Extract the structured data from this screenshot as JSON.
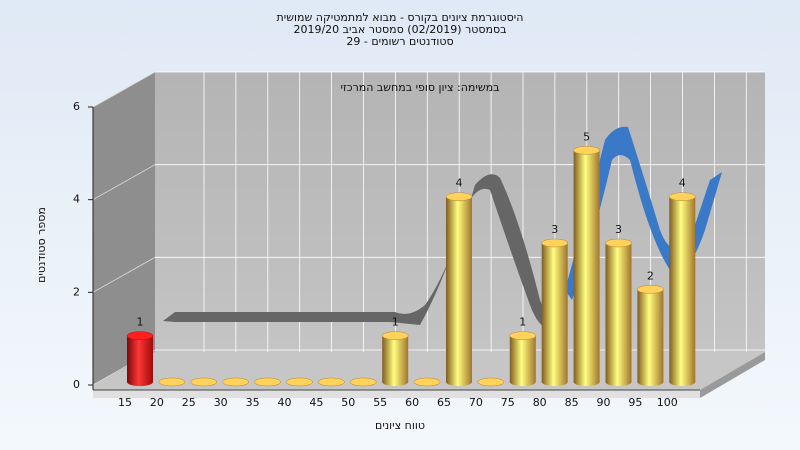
{
  "chart_data": {
    "type": "bar",
    "title_lines": [
      "היסטוגרמת ציונים בקורס - מבוא למתמטיקה שמושית",
      "בסמסטר  (02/2019)  סמסטר אביב 2019/20",
      "סטודנטים רשומים - 29"
    ],
    "annotation": "במשימה: ציון סופי במחשב המרכזי",
    "x_label": "טווח ציונים",
    "y_label": "מספר סטודנטים",
    "categories": [
      "15",
      "20",
      "25",
      "30",
      "35",
      "40",
      "45",
      "50",
      "55",
      "60",
      "65",
      "70",
      "75",
      "80",
      "85",
      "90",
      "95",
      "100"
    ],
    "values": [
      1,
      0,
      0,
      0,
      0,
      0,
      0,
      0,
      1,
      0,
      4,
      0,
      1,
      3,
      5,
      3,
      2,
      4
    ],
    "colors": [
      "#e01010",
      "#e8a540",
      "#e8a540",
      "#e8a540",
      "#e8a540",
      "#e8a540",
      "#e8a540",
      "#e8a540",
      "#e8a540",
      "#e8a540",
      "#e8a540",
      "#e8a540",
      "#e8a540",
      "#e8a540",
      "#e8a540",
      "#e8a540",
      "#e8a540",
      "#e8a540"
    ],
    "ylim": [
      0,
      6
    ],
    "yticks": [
      0,
      2,
      4,
      6
    ],
    "grid": true
  }
}
